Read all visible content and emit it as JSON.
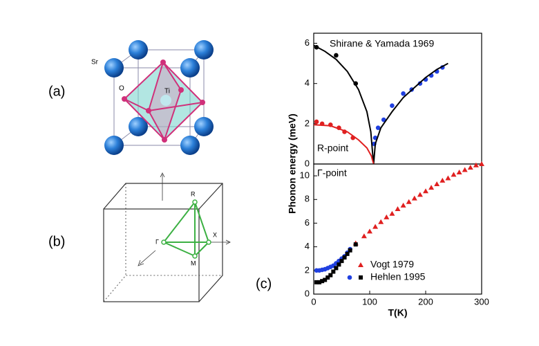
{
  "panels": [
    "(a)",
    "(b)",
    "(c)"
  ],
  "structure_labels": [
    "Sr",
    "O",
    "Ti"
  ],
  "zone_labels": [
    "R",
    "Γ",
    "X",
    "M"
  ],
  "chart_data": [
    {
      "type": "scatter",
      "annotations": [
        "Shirane & Yamada 1969",
        "R-point"
      ],
      "xlim": [
        0,
        300
      ],
      "ylim": [
        0,
        6.5
      ],
      "yticks": [
        0,
        2,
        4,
        6
      ],
      "series": [
        {
          "color": "#000000",
          "marker": "circle",
          "x": [
            5,
            40,
            75
          ],
          "values": [
            5.8,
            5.4,
            4.0
          ]
        },
        {
          "color": "#2040e0",
          "marker": "circle",
          "x": [
            108,
            110,
            115,
            125,
            140,
            160,
            175,
            190,
            200,
            210,
            220,
            230
          ],
          "values": [
            1.0,
            1.3,
            1.8,
            2.2,
            2.9,
            3.5,
            3.7,
            4.0,
            4.2,
            4.4,
            4.6,
            4.8
          ]
        },
        {
          "color": "#e02020",
          "marker": "circle",
          "x": [
            5,
            15,
            30,
            45,
            55,
            70
          ],
          "values": [
            2.1,
            2.0,
            1.95,
            1.8,
            1.6,
            1.3
          ]
        },
        {
          "color": "#000000",
          "marker": "line",
          "x": [
            0,
            20,
            40,
            60,
            80,
            95,
            102,
            105,
            107,
            110,
            120,
            140,
            160,
            180,
            200,
            220,
            240
          ],
          "values": [
            5.9,
            5.6,
            5.2,
            4.6,
            3.7,
            2.6,
            1.6,
            0.6,
            0,
            1.0,
            1.8,
            2.6,
            3.3,
            3.8,
            4.3,
            4.7,
            5.0
          ]
        },
        {
          "color": "#e02020",
          "marker": "line",
          "x": [
            0,
            30,
            60,
            80,
            95,
            103,
            107
          ],
          "values": [
            1.95,
            1.9,
            1.6,
            1.2,
            0.8,
            0.4,
            0
          ]
        }
      ]
    },
    {
      "type": "scatter",
      "annotations": [
        "Γ-point"
      ],
      "xlabel": "T(K)",
      "ylabel": "Phonon energy (meV)",
      "xlim": [
        0,
        300
      ],
      "xticks": [
        0,
        100,
        200,
        300
      ],
      "ylim": [
        0,
        11
      ],
      "yticks": [
        0,
        2,
        4,
        6,
        8,
        10
      ],
      "series": [
        {
          "name": "Vogt 1979",
          "color": "#e02020",
          "marker": "triangle",
          "x": [
            75,
            90,
            100,
            110,
            120,
            130,
            140,
            150,
            160,
            170,
            180,
            190,
            200,
            210,
            220,
            230,
            240,
            250,
            260,
            270,
            280,
            290,
            300
          ],
          "values": [
            4.3,
            4.9,
            5.3,
            5.7,
            6.1,
            6.5,
            6.8,
            7.2,
            7.5,
            7.8,
            8.1,
            8.4,
            8.7,
            9.0,
            9.3,
            9.6,
            9.8,
            10.1,
            10.3,
            10.5,
            10.7,
            10.9,
            11.0
          ]
        },
        {
          "name": "Hehlen 1995",
          "color": "#2040e0",
          "marker": "circle",
          "x": [
            5,
            10,
            15,
            20,
            25,
            30,
            35,
            40,
            45,
            50,
            55,
            60,
            65
          ],
          "values": [
            2.0,
            2.0,
            2.05,
            2.1,
            2.2,
            2.3,
            2.4,
            2.6,
            2.8,
            3.0,
            3.2,
            3.5,
            3.8
          ]
        },
        {
          "name": "Hehlen 1995",
          "color": "#000000",
          "marker": "square",
          "x": [
            5,
            10,
            15,
            20,
            25,
            30,
            35,
            40,
            45,
            50,
            55,
            60,
            65,
            75
          ],
          "values": [
            1.0,
            1.0,
            1.1,
            1.2,
            1.4,
            1.6,
            1.9,
            2.2,
            2.5,
            2.8,
            3.1,
            3.4,
            3.7,
            4.2
          ]
        }
      ]
    }
  ]
}
